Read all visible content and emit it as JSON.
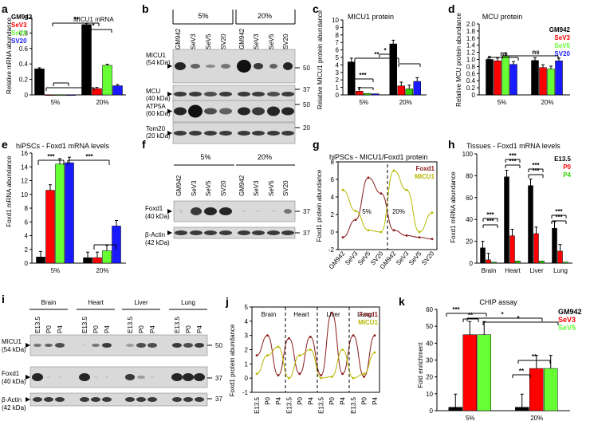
{
  "colors": {
    "black": "#000000",
    "red": "#ff0000",
    "green": "#33cc00",
    "lime": "#66ff33",
    "blue": "#1a1aff",
    "maroon": "#8b1a1a",
    "olive": "#b8b800"
  },
  "panels": {
    "a": {
      "letter": "a",
      "title": "MICU1 mRNA",
      "ylabel": "Relative mRNA abundance",
      "groups": [
        "5%",
        "20%"
      ],
      "legend": [
        "GM942",
        "SeV3",
        "SeV5",
        "SV20"
      ],
      "sig": [
        "***",
        "**",
        "*"
      ],
      "tick_labels": [
        "0",
        "0.2",
        "0.4",
        "0.6",
        "0.8",
        "1"
      ]
    },
    "b": {
      "letter": "b",
      "groups": [
        "5%",
        "20%"
      ],
      "lanes": [
        "GM942",
        "SeV3",
        "SeV5",
        "SV20",
        "GM942",
        "SeV3",
        "SeV5",
        "SV20"
      ],
      "rows": [
        "MICU1",
        "(54 kDa)",
        "MCU",
        "(40 kDa)",
        "ATP5A",
        "(60 kDa)",
        "Tom20",
        "(20 kDa)"
      ],
      "markers": [
        "50",
        "37",
        "50",
        "20"
      ]
    },
    "c": {
      "letter": "c",
      "title": "MICU1 protein",
      "ylabel": "Relative MICU1 protein abundance",
      "groups": [
        "5%",
        "20%"
      ],
      "sig": [
        "**",
        "*",
        "***"
      ],
      "tick_labels": [
        "0",
        "1",
        "2",
        "3",
        "4",
        "5",
        "6",
        "7",
        "8",
        "9",
        "10"
      ]
    },
    "d": {
      "letter": "d",
      "title": "MCU protein",
      "ylabel": "Relative MCU protein abundance",
      "groups": [
        "5%",
        "20%"
      ],
      "legend": [
        "GM942",
        "SeV3",
        "SeV5",
        "SV20"
      ],
      "sig": [
        "ns",
        "ns"
      ],
      "tick_labels": [
        "0",
        "0.2",
        "0.4",
        "0.6",
        "0.8",
        "1.0",
        "1.2",
        "1.4",
        "1.6",
        "1.8",
        "2.0"
      ]
    },
    "e": {
      "letter": "e",
      "title": "hiPSCs - Foxd1 mRNA levels",
      "ylabel": "Foxd1 mRNA abundance",
      "groups": [
        "5%",
        "20%"
      ],
      "sig": [
        "***",
        "***"
      ],
      "tick_labels": [
        "0",
        "2",
        "4",
        "6",
        "8",
        "10",
        "12",
        "14",
        "16"
      ]
    },
    "f": {
      "letter": "f",
      "groups": [
        "5%",
        "20%"
      ],
      "lanes": [
        "GM942",
        "SeV3",
        "SeV5",
        "SV20",
        "GM942",
        "SeV3",
        "SeV5",
        "SV20"
      ],
      "rows": [
        "Foxd1",
        "(40 kDa)",
        "β-Actin",
        "(42 kDa)"
      ],
      "markers": [
        "37",
        "37"
      ]
    },
    "g": {
      "letter": "g",
      "title": "hiPSCs - MICU1/Foxd1 protein",
      "ylabel": "Foxd1 protein abundance",
      "legend": [
        "Foxd1",
        "MICU1"
      ],
      "inner": [
        "5%",
        "20%"
      ],
      "xlabels": [
        "GM942",
        "SeV3",
        "SeV5",
        "SV20",
        "GM942",
        "SeV3",
        "SeV5",
        "SV20"
      ],
      "tick_labels": [
        "-2",
        "0",
        "2",
        "4",
        "6",
        "8"
      ]
    },
    "h": {
      "letter": "h",
      "title": "Tissues - Foxd1 mRNA levels",
      "ylabel": "Foxd1 mRNA abundance",
      "groups": [
        "Brain",
        "Heart",
        "Liver",
        "Lung"
      ],
      "legend": [
        "E13.5",
        "P0",
        "P4"
      ],
      "sig": [
        "***",
        "***",
        "***",
        "***",
        "***",
        "***",
        "***",
        "***"
      ],
      "tick_labels": [
        "0",
        "20",
        "40",
        "60",
        "80",
        "100"
      ]
    },
    "i": {
      "letter": "i",
      "groups": [
        "Brain",
        "Heart",
        "Liver",
        "Lung"
      ],
      "lanes": [
        "E13.5",
        "P0",
        "P4",
        "E13.5",
        "P0",
        "P4",
        "E13.5",
        "P0",
        "P4",
        "E13.5",
        "P0",
        "P4"
      ],
      "rows": [
        "MICU1",
        "(54 kDa)",
        "Foxd1",
        "(40 kDa)",
        "β-Actin",
        "(42 kDa)"
      ],
      "markers": [
        "50",
        "37",
        "37"
      ]
    },
    "j": {
      "letter": "j",
      "ylabel": "Foxd1 protein abundance",
      "groups": [
        "Brain",
        "Heart",
        "Liver",
        "Lung"
      ],
      "legend": [
        "Foxd1",
        "MICU1"
      ],
      "xlabels": [
        "E13.5",
        "P0",
        "P4",
        "E13.5",
        "P0",
        "P4",
        "E13.5",
        "P0",
        "P4",
        "E13.5",
        "P0",
        "P4"
      ],
      "tick_labels": [
        "-1",
        "0",
        "1",
        "2",
        "3",
        "4",
        "5"
      ]
    },
    "k": {
      "letter": "k",
      "title": "CHIP assay",
      "ylabel": "Fold enrichment",
      "groups": [
        "5%",
        "20%"
      ],
      "legend": [
        "GM942",
        "SeV3",
        "SeV5"
      ],
      "sig": [
        "***",
        "**",
        "*",
        "*",
        "**",
        "**"
      ],
      "tick_labels": [
        "0",
        "10",
        "20",
        "30",
        "40",
        "50",
        "60"
      ]
    }
  },
  "chart_data": [
    {
      "panel": "a",
      "type": "bar",
      "categories": [
        "5%",
        "20%"
      ],
      "ylim": [
        0,
        1.1
      ],
      "series": [
        {
          "name": "GM942",
          "values": [
            0.37,
            1.0
          ]
        },
        {
          "name": "SeV3",
          "values": [
            0.0,
            0.09
          ]
        },
        {
          "name": "SeV5",
          "values": [
            0.0,
            0.42
          ]
        },
        {
          "name": "SV20",
          "values": [
            0.0,
            0.13
          ]
        }
      ]
    },
    {
      "panel": "c",
      "type": "bar",
      "categories": [
        "5%",
        "20%"
      ],
      "ylim": [
        0,
        10
      ],
      "series": [
        {
          "values": [
            4.4,
            6.8
          ]
        },
        {
          "values": [
            0.5,
            1.2
          ]
        },
        {
          "values": [
            0.2,
            0.8
          ]
        },
        {
          "values": [
            0.15,
            1.8
          ]
        }
      ]
    },
    {
      "panel": "d",
      "type": "bar",
      "categories": [
        "5%",
        "20%"
      ],
      "ylim": [
        0,
        2.0
      ],
      "series": [
        {
          "name": "GM942",
          "values": [
            1.0,
            0.97
          ]
        },
        {
          "name": "SeV3",
          "values": [
            0.96,
            0.77
          ]
        },
        {
          "name": "SeV5",
          "values": [
            1.1,
            0.73
          ]
        },
        {
          "name": "SV20",
          "values": [
            0.86,
            0.96
          ]
        }
      ]
    },
    {
      "panel": "e",
      "type": "bar",
      "categories": [
        "5%",
        "20%"
      ],
      "ylim": [
        0,
        16
      ],
      "series": [
        {
          "values": [
            0.9,
            0.8
          ]
        },
        {
          "values": [
            10.6,
            0.8
          ]
        },
        {
          "values": [
            14.4,
            1.8
          ]
        },
        {
          "values": [
            14.6,
            5.4
          ]
        }
      ]
    },
    {
      "panel": "g",
      "type": "line",
      "ylim": [
        -2,
        8
      ],
      "series": [
        {
          "name": "Foxd1",
          "values": [
            -0.6,
            1.4,
            6.2,
            4.4,
            0.2,
            -0.4,
            -0.6,
            -0.8
          ]
        },
        {
          "name": "MICU1",
          "values": [
            4.8,
            2.4,
            0.2,
            0.0,
            7.0,
            4.8,
            0.0,
            2.2
          ]
        }
      ]
    },
    {
      "panel": "h",
      "type": "bar",
      "categories": [
        "Brain",
        "Heart",
        "Liver",
        "Lung"
      ],
      "ylim": [
        0,
        100
      ],
      "series": [
        {
          "name": "E13.5",
          "values": [
            14,
            79,
            71,
            32
          ]
        },
        {
          "name": "P0",
          "values": [
            3,
            25,
            27,
            11
          ]
        },
        {
          "name": "P4",
          "values": [
            1,
            2,
            2,
            1
          ]
        }
      ]
    },
    {
      "panel": "j",
      "type": "line",
      "ylim": [
        -1,
        5
      ],
      "series": [
        {
          "name": "Foxd1",
          "values": [
            1.6,
            3.0,
            0.2,
            2.8,
            0.3,
            2.9,
            0.2,
            4.6,
            0.3,
            3.0,
            0.1,
            3.0
          ]
        },
        {
          "name": "MICU1",
          "values": [
            0.3,
            1.6,
            2.2,
            0.0,
            1.6,
            2.0,
            0.0,
            0.1,
            2.0,
            0.0,
            0.3,
            1.8
          ]
        }
      ]
    },
    {
      "panel": "k",
      "type": "bar",
      "categories": [
        "5%",
        "20%"
      ],
      "ylim": [
        0,
        60
      ],
      "series": [
        {
          "name": "GM942",
          "values": [
            2,
            2
          ]
        },
        {
          "name": "SeV3",
          "values": [
            45,
            25
          ]
        },
        {
          "name": "SeV5",
          "values": [
            45,
            25
          ]
        }
      ]
    }
  ]
}
